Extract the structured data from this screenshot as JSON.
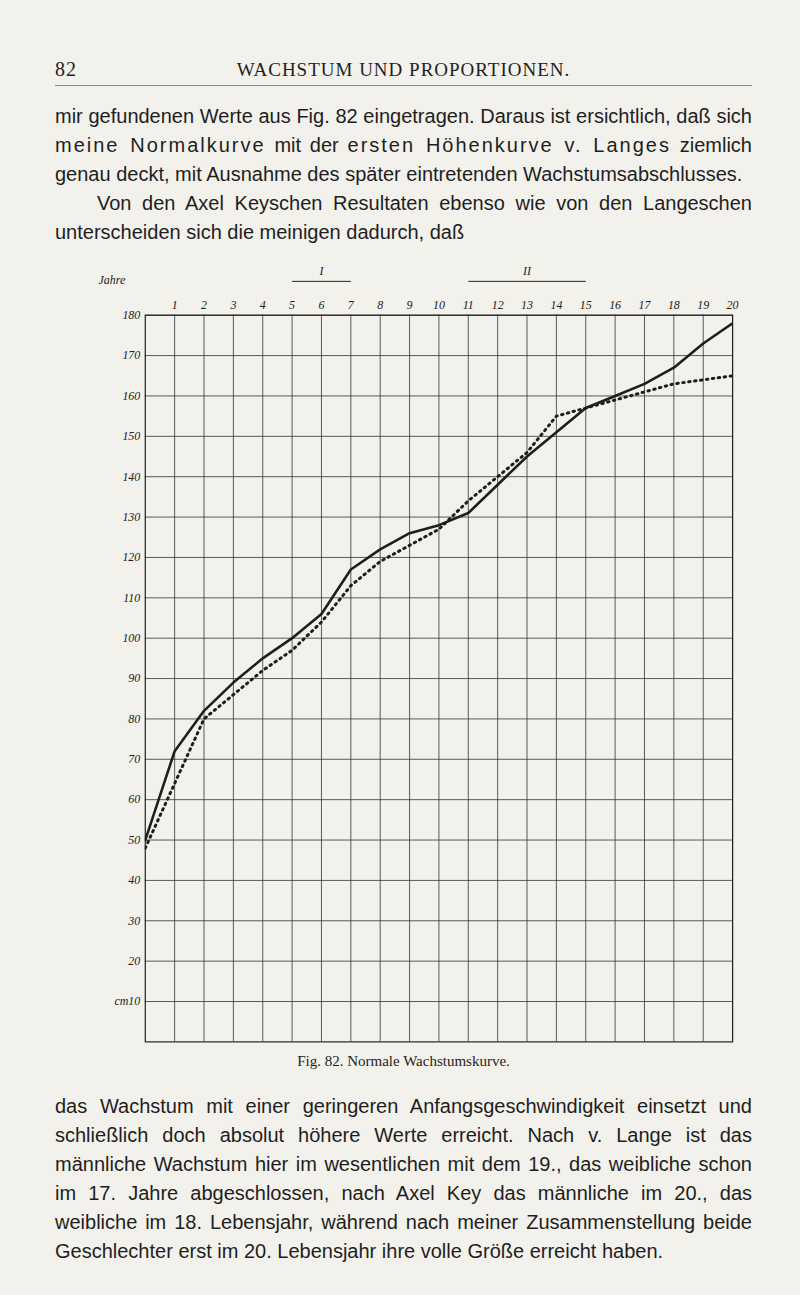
{
  "page_number": "82",
  "running_head": "WACHSTUM UND PROPORTIONEN.",
  "text_before": [
    {
      "indent": false,
      "segments": [
        {
          "text": "mir gefundenen Werte aus Fig. 82 eingetragen. Daraus ist ersichtlich, daß sich "
        },
        {
          "text": "meine Normalkurve",
          "spaced": true
        },
        {
          "text": " mit der "
        },
        {
          "text": "ersten Höhenkurve v. Langes",
          "spaced": true
        },
        {
          "text": " ziemlich genau deckt, mit Ausnahme des später eintretenden Wachstumsabschlusses."
        }
      ]
    },
    {
      "indent": true,
      "segments": [
        {
          "text": "Von den Axel Keyschen Resultaten ebenso wie von den Langeschen unterscheiden sich die meinigen dadurch, daß"
        }
      ]
    }
  ],
  "chart_data": {
    "type": "line",
    "x_label": "Jahre",
    "x": [
      0,
      1,
      2,
      3,
      4,
      5,
      6,
      7,
      8,
      9,
      10,
      11,
      12,
      13,
      14,
      15,
      16,
      17,
      18,
      19,
      20
    ],
    "series": [
      {
        "color": "#1e1e1e",
        "line_style": "solid",
        "values": [
          50,
          72,
          82,
          89,
          95,
          100,
          106,
          117,
          122,
          126,
          128,
          131,
          138,
          145,
          151,
          157,
          160,
          163,
          167,
          173,
          178
        ]
      },
      {
        "color": "#1e1e1e",
        "line_style": "dotted",
        "values": [
          48,
          64,
          80,
          86,
          92,
          97,
          104,
          113,
          119,
          123,
          127,
          134,
          140,
          146,
          155,
          157,
          159,
          161,
          163,
          164,
          165
        ]
      }
    ],
    "xlim": [
      0,
      20
    ],
    "xticks": [
      1,
      2,
      3,
      4,
      5,
      6,
      7,
      8,
      9,
      10,
      11,
      12,
      13,
      14,
      15,
      16,
      17,
      18,
      19,
      20
    ],
    "ylim": [
      0,
      180
    ],
    "yticks": [
      {
        "value": 10,
        "label": "cm10"
      },
      20,
      30,
      40,
      50,
      60,
      70,
      80,
      90,
      100,
      110,
      120,
      130,
      140,
      150,
      160,
      170,
      180
    ],
    "grid": true,
    "periods": [
      {
        "label": "I",
        "from": 5,
        "to": 7
      },
      {
        "label": "II",
        "from": 11,
        "to": 15
      }
    ]
  },
  "caption": "Fig. 82. Normale Wachstumskurve.",
  "text_after": [
    {
      "indent": false,
      "segments": [
        {
          "text": "das Wachstum mit einer geringeren Anfangsgeschwindigkeit einsetzt und schließlich doch absolut höhere Werte erreicht. Nach v. Lange ist das männliche Wachstum hier im wesentlichen mit dem 19., das weibliche schon im 17. Jahre abgeschlossen, nach Axel Key das männliche im 20., das weibliche im 18. Lebensjahr, während nach meiner Zusammenstellung beide Geschlechter erst im 20. Lebensjahr ihre volle Größe erreicht haben."
        }
      ]
    }
  ]
}
